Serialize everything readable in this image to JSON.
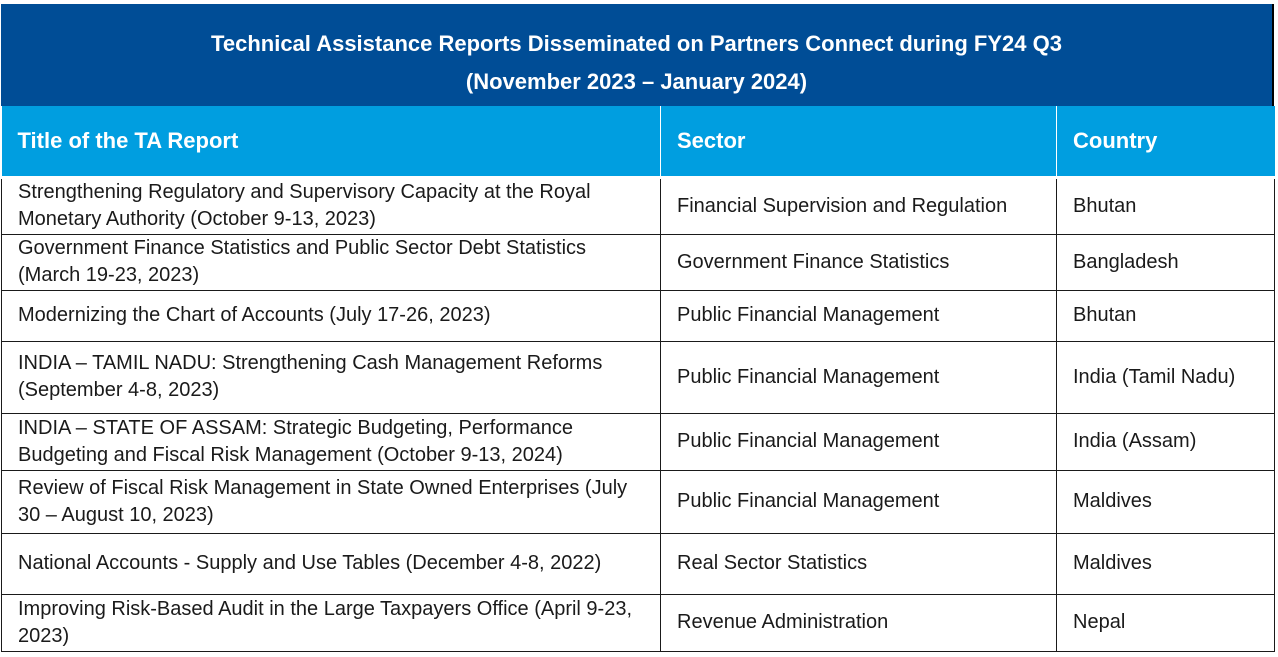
{
  "header": {
    "title_line1": "Technical Assistance Reports Disseminated on Partners Connect during FY24 Q3",
    "title_line2": "(November 2023 – January 2024)"
  },
  "columns": {
    "title": "Title of the TA Report",
    "sector": "Sector",
    "country": "Country"
  },
  "rows": [
    {
      "title": "Strengthening Regulatory and Supervisory Capacity at the Royal Monetary Authority (October 9-13, 2023)",
      "sector": "Financial Supervision and Regulation",
      "country": "Bhutan"
    },
    {
      "title": "Government Finance Statistics and Public Sector Debt Statistics (March 19-23, 2023)",
      "sector": "Government Finance Statistics",
      "country": "Bangladesh"
    },
    {
      "title": "Modernizing the Chart of Accounts (July 17-26, 2023)",
      "sector": "Public Financial Management",
      "country": "Bhutan"
    },
    {
      "title": "INDIA – TAMIL NADU: Strengthening Cash Management Reforms (September 4-8, 2023)",
      "sector": "Public Financial Management",
      "country": "India (Tamil Nadu)"
    },
    {
      "title": "INDIA – STATE OF ASSAM: Strategic Budgeting, Performance Budgeting and Fiscal Risk Management (October 9-13, 2024)",
      "sector": "Public Financial Management",
      "country": "India (Assam)"
    },
    {
      "title": "Review of Fiscal Risk Management in State Owned Enterprises (July 30 – August 10, 2023)",
      "sector": "Public Financial Management",
      "country": "Maldives"
    },
    {
      "title": "National Accounts - Supply and Use Tables (December 4-8, 2022)",
      "sector": "Real Sector Statistics",
      "country": "Maldives"
    },
    {
      "title": "Improving Risk-Based Audit in the Large Taxpayers Office (April 9-23, 2023)",
      "sector": "Revenue Administration",
      "country": "Nepal"
    }
  ],
  "colors": {
    "banner_background": "#004d96",
    "header_background": "#009ee0",
    "text": "#1a1a1a"
  }
}
